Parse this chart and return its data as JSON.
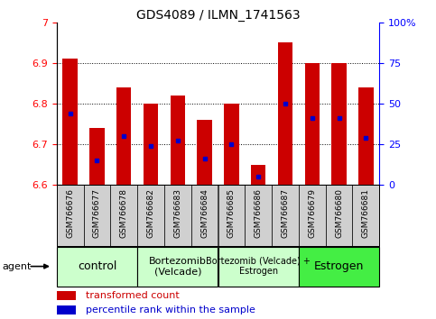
{
  "title": "GDS4089 / ILMN_1741563",
  "samples": [
    "GSM766676",
    "GSM766677",
    "GSM766678",
    "GSM766682",
    "GSM766683",
    "GSM766684",
    "GSM766685",
    "GSM766686",
    "GSM766687",
    "GSM766679",
    "GSM766680",
    "GSM766681"
  ],
  "bar_values": [
    6.91,
    6.74,
    6.84,
    6.8,
    6.82,
    6.76,
    6.8,
    6.65,
    6.95,
    6.9,
    6.9,
    6.84
  ],
  "percentile_values": [
    6.775,
    6.66,
    6.72,
    6.695,
    6.71,
    6.665,
    6.7,
    6.62,
    6.8,
    6.765,
    6.765,
    6.715
  ],
  "y_min": 6.6,
  "y_max": 7.0,
  "bar_color": "#cc0000",
  "marker_color": "#0000cc",
  "groups": [
    {
      "label": "control",
      "start": 0,
      "end": 2,
      "color": "#ccffcc",
      "fontsize": 9
    },
    {
      "label": "Bortezomib\n(Velcade)",
      "start": 3,
      "end": 5,
      "color": "#ccffcc",
      "fontsize": 8
    },
    {
      "label": "Bortezomib (Velcade) +\nEstrogen",
      "start": 6,
      "end": 8,
      "color": "#ccffcc",
      "fontsize": 7
    },
    {
      "label": "Estrogen",
      "start": 9,
      "end": 11,
      "color": "#44ee44",
      "fontsize": 9
    }
  ],
  "right_yticks_pct": [
    0,
    25,
    50,
    75,
    100
  ],
  "right_yticklabels": [
    "0",
    "25",
    "50",
    "75",
    "100%"
  ],
  "grid_values": [
    6.7,
    6.8,
    6.9
  ],
  "bar_width": 0.55,
  "tick_label_fontsize": 7,
  "left_ytick_color": "red",
  "right_ytick_color": "blue",
  "left_yticks": [
    6.6,
    6.7,
    6.8,
    6.9,
    7.0
  ],
  "left_yticklabels": [
    "6.6",
    "6.7",
    "6.8",
    "6.9",
    "7"
  ]
}
